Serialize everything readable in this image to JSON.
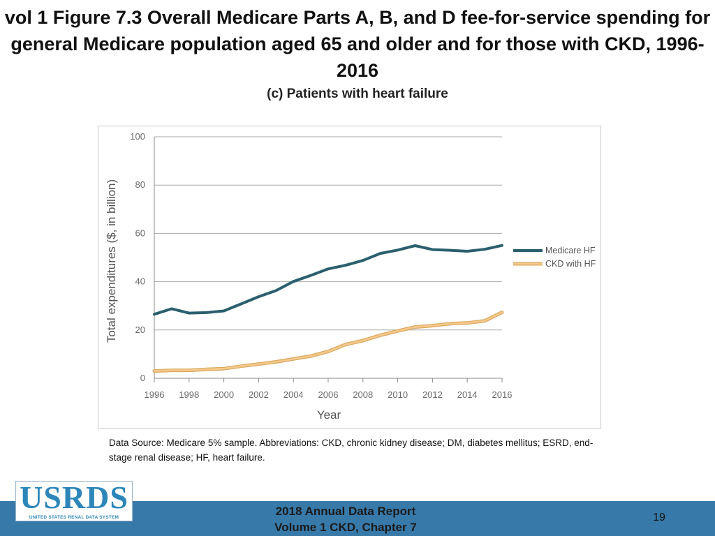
{
  "title": "vol 1 Figure 7.3 Overall Medicare Parts A, B, and D fee-for-service spending for general Medicare population aged 65 and older and for those with CKD, 1996-2016",
  "subtitle": "(c) Patients with heart failure",
  "chart_data": {
    "type": "line",
    "title": "(c) Patients with heart failure",
    "xlabel": "Year",
    "ylabel": "Total expenditures ($, in billion)",
    "x": [
      1996,
      1997,
      1998,
      1999,
      2000,
      2001,
      2002,
      2003,
      2004,
      2005,
      2006,
      2007,
      2008,
      2009,
      2010,
      2011,
      2012,
      2013,
      2014,
      2015,
      2016
    ],
    "xticks": [
      1996,
      1998,
      2000,
      2002,
      2004,
      2006,
      2008,
      2010,
      2012,
      2014,
      2016
    ],
    "yticks": [
      0,
      20,
      40,
      60,
      80,
      100
    ],
    "xlim": [
      1996,
      2016
    ],
    "ylim": [
      0,
      100
    ],
    "grid": true,
    "legend_position": "right",
    "series": [
      {
        "name": "Medicare HF",
        "color": "#2b5f6e",
        "values": [
          26.5,
          28.8,
          27.0,
          27.2,
          27.9,
          30.8,
          33.8,
          36.3,
          40.1,
          42.6,
          45.3,
          46.8,
          48.8,
          51.7,
          53.1,
          54.9,
          53.3,
          53.0,
          52.6,
          53.4,
          55.0
        ]
      },
      {
        "name": "CKD with HF",
        "color": "#f5c98a",
        "values": [
          3.0,
          3.3,
          3.3,
          3.7,
          4.0,
          5.0,
          5.9,
          6.8,
          8.0,
          9.2,
          11.1,
          14.0,
          15.6,
          17.8,
          19.6,
          21.2,
          21.8,
          22.6,
          22.9,
          23.8,
          27.3
        ]
      }
    ]
  },
  "source_note": "Data Source: Medicare 5% sample. Abbreviations: CKD, chronic kidney disease; DM, diabetes mellitus; ESRD, end-stage renal disease; HF, heart failure.",
  "logo": {
    "text": "USRDS",
    "subtext": "UNITED STATES RENAL DATA SYSTEM"
  },
  "footer": {
    "report_line1": "2018 Annual Data Report",
    "report_line2": "Volume 1 CKD, Chapter 7",
    "page_number": "19"
  }
}
